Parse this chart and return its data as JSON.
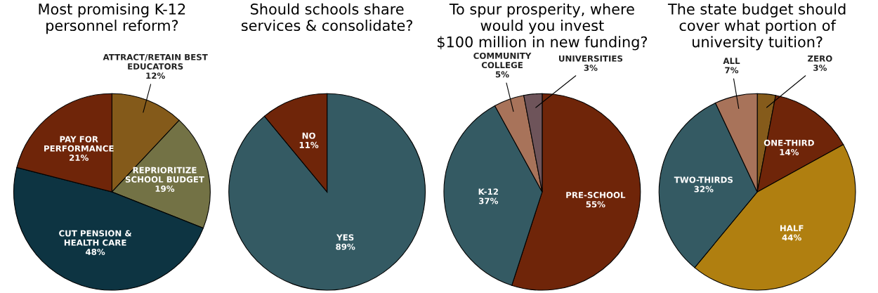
{
  "chart_data": [
    {
      "type": "pie",
      "title": "Most promising K-12\npersonnel reform?",
      "categories": [
        "ATTRACT/RETAIN BEST\nEDUCATORS",
        "REPRIORITIZE\nSCHOOL BUDGET",
        "CUT PENSION &\nHEALTH CARE",
        "PAY FOR\nPERFORMANCE"
      ],
      "values": [
        12,
        19,
        48,
        21
      ],
      "value_labels": [
        "12%",
        "19%",
        "48%",
        "21%"
      ],
      "colors": [
        "#845a1a",
        "#737245",
        "#0d3442",
        "#6f2509"
      ]
    },
    {
      "type": "pie",
      "title": "Should schools share\nservices & consolidate?",
      "categories": [
        "YES",
        "NO"
      ],
      "values": [
        89,
        11
      ],
      "value_labels": [
        "89%",
        "11%"
      ],
      "colors": [
        "#345a63",
        "#6f2509"
      ]
    },
    {
      "type": "pie",
      "title": "To spur prosperity, where\nwould you invest\n$100 million in new funding?",
      "categories": [
        "PRE-SCHOOL",
        "K-12",
        "COMMUNITY\nCOLLEGE",
        "UNIVERSITIES"
      ],
      "values": [
        55,
        37,
        5,
        3
      ],
      "value_labels": [
        "55%",
        "37%",
        "5%",
        "3%"
      ],
      "colors": [
        "#6f2509",
        "#345a63",
        "#a8735a",
        "#6e545a"
      ]
    },
    {
      "type": "pie",
      "title": "The state budget should\ncover what portion of\nuniversity tuition?",
      "categories": [
        "ZERO",
        "ONE-THIRD",
        "HALF",
        "TWO-THIRDS",
        "ALL"
      ],
      "values": [
        3,
        14,
        44,
        32,
        7
      ],
      "value_labels": [
        "3%",
        "14%",
        "44%",
        "32%",
        "7%"
      ],
      "colors": [
        "#855b1b",
        "#6f2509",
        "#b07f10",
        "#345a63",
        "#a8735a"
      ]
    }
  ]
}
